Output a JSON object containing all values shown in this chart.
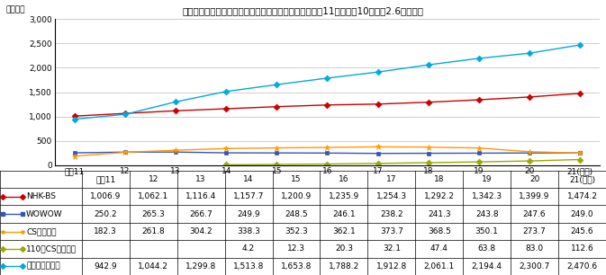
{
  "title": "衛星放送全体では継続的に増加。ケーブルテレビは平成11年からの10年間で2.6倍と拡大",
  "ylabel": "（万件）",
  "years": [
    "平成11",
    "12",
    "13",
    "14",
    "15",
    "16",
    "17",
    "18",
    "19",
    "20",
    "21(年度)"
  ],
  "series": [
    {
      "name": "NHK-BS",
      "color": "#cc0000",
      "marker": "D",
      "markersize": 3.5,
      "values": [
        1006.9,
        1062.1,
        1116.4,
        1157.7,
        1200.9,
        1235.9,
        1254.3,
        1292.2,
        1342.3,
        1399.9,
        1474.2
      ]
    },
    {
      "name": "WOWOW",
      "color": "#3355bb",
      "marker": "s",
      "markersize": 3.5,
      "values": [
        250.2,
        265.3,
        266.7,
        249.9,
        248.5,
        246.1,
        238.2,
        241.3,
        243.8,
        247.6,
        249.0
      ]
    },
    {
      "name": "CSデジタル",
      "color": "#ff9900",
      "marker": "*",
      "markersize": 5,
      "values": [
        182.3,
        261.8,
        304.2,
        338.3,
        352.3,
        362.1,
        373.7,
        368.5,
        350.1,
        273.7,
        245.6
      ]
    },
    {
      "name": "110度CSデジタル",
      "color": "#99aa00",
      "marker": "D",
      "markersize": 3.5,
      "values": [
        null,
        null,
        null,
        4.2,
        12.3,
        20.3,
        32.1,
        47.4,
        63.8,
        83.0,
        112.6
      ]
    },
    {
      "name": "ケーブルテレビ",
      "color": "#00aadd",
      "marker": "D",
      "markersize": 3.5,
      "values": [
        942.9,
        1044.2,
        1299.8,
        1513.8,
        1653.8,
        1788.2,
        1912.8,
        2061.1,
        2194.4,
        2300.7,
        2470.6
      ]
    }
  ],
  "ylim": [
    0,
    3000
  ],
  "yticks": [
    0,
    500,
    1000,
    1500,
    2000,
    2500,
    3000
  ],
  "table_rows": [
    [
      "NHK-BS",
      "1,006.9",
      "1,062.1",
      "1,116.4",
      "1,157.7",
      "1,200.9",
      "1,235.9",
      "1,254.3",
      "1,292.2",
      "1,342.3",
      "1,399.9",
      "1,474.2"
    ],
    [
      "WOWOW",
      "250.2",
      "265.3",
      "266.7",
      "249.9",
      "248.5",
      "246.1",
      "238.2",
      "241.3",
      "243.8",
      "247.6",
      "249.0"
    ],
    [
      "CSデジタル",
      "182.3",
      "261.8",
      "304.2",
      "338.3",
      "352.3",
      "362.1",
      "373.7",
      "368.5",
      "350.1",
      "273.7",
      "245.6"
    ],
    [
      "110度CSデジタル",
      "",
      "",
      "",
      "4.2",
      "12.3",
      "20.3",
      "32.1",
      "47.4",
      "63.8",
      "83.0",
      "112.6"
    ],
    [
      "ケーブルテレビ",
      "942.9",
      "1,044.2",
      "1,299.8",
      "1,513.8",
      "1,653.8",
      "1,788.2",
      "1,912.8",
      "2,061.1",
      "2,194.4",
      "2,300.7",
      "2,470.6"
    ]
  ],
  "legend_names": [
    "NHK-BS",
    "WOWOW",
    "CSデジタル",
    "110度CSデジタル",
    "ケーブルテレビ"
  ],
  "legend_colors": [
    "#cc0000",
    "#3355bb",
    "#ff9900",
    "#99aa00",
    "#00aadd"
  ],
  "legend_markers": [
    "D",
    "s",
    "*",
    "D",
    "D"
  ],
  "grid_color": "#bbbbbb",
  "font_size": 6.5,
  "title_font_size": 7.5
}
